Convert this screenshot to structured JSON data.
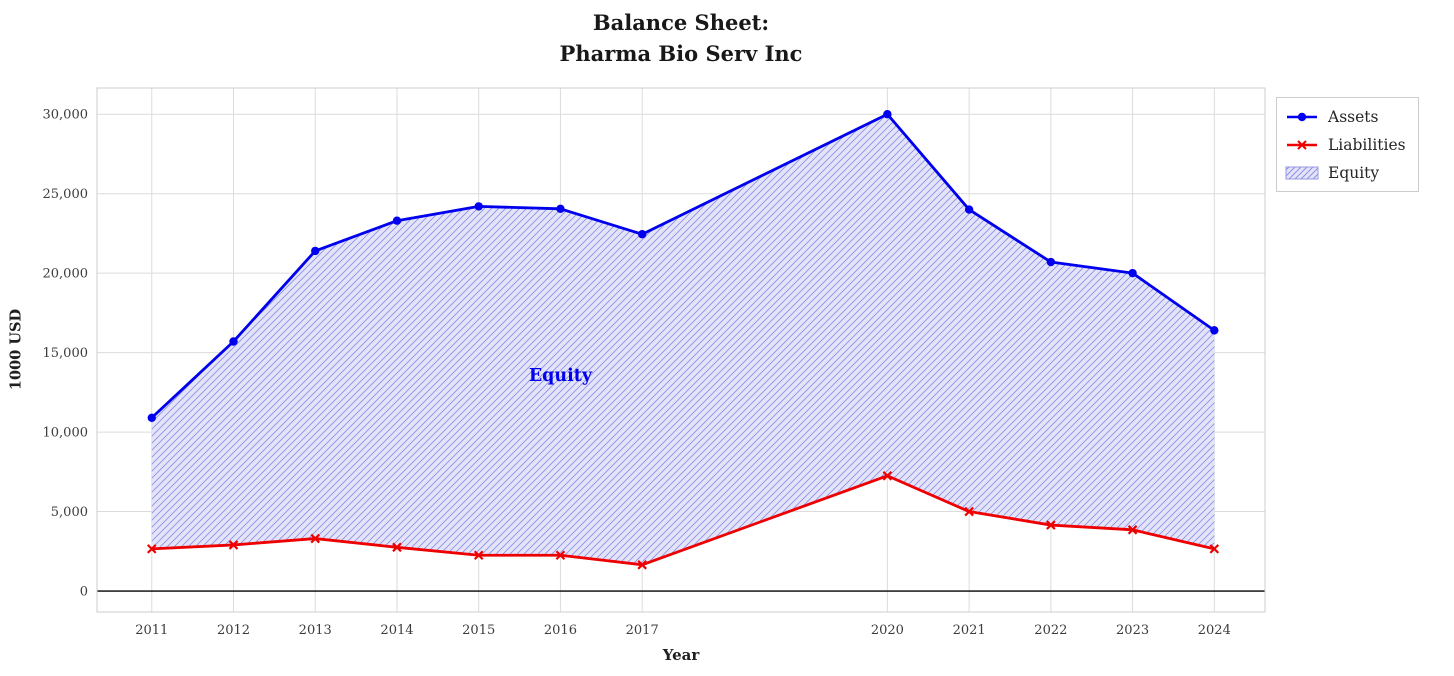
{
  "figure": {
    "title_line1": "Balance Sheet:",
    "title_line2": "Pharma Bio Serv Inc",
    "xlabel": "Year",
    "ylabel": "1000 USD"
  },
  "legend": {
    "items": [
      {
        "label": "Assets",
        "icon": "line-circle-icon",
        "color": "#0000ee"
      },
      {
        "label": "Liabilities",
        "icon": "line-x-icon",
        "color": "#ee0000"
      },
      {
        "label": "Equity",
        "icon": "hatch-patch-icon",
        "color": "#e4e4f9"
      }
    ]
  },
  "chart_data": {
    "type": "line",
    "title": "Balance Sheet:\nPharma Bio Serv Inc",
    "xlabel": "Year",
    "ylabel": "1000 USD",
    "x": [
      2011,
      2012,
      2013,
      2014,
      2015,
      2016,
      2017,
      2020,
      2021,
      2022,
      2023,
      2024
    ],
    "series": [
      {
        "name": "Assets",
        "color": "#0000ee",
        "marker": "circle",
        "values": [
          10900,
          15700,
          21400,
          23300,
          24200,
          24050,
          22450,
          30000,
          24000,
          20700,
          20000,
          16400
        ]
      },
      {
        "name": "Liabilities",
        "color": "#ee0000",
        "marker": "x",
        "values": [
          2650,
          2900,
          3300,
          2750,
          2250,
          2250,
          1650,
          7250,
          5000,
          4150,
          3850,
          2650
        ]
      }
    ],
    "fill_between": {
      "name": "Equity",
      "upper": "Assets",
      "lower": "Liabilities",
      "facecolor": "#e4e4f9",
      "hatch_color": "#8f8fe8",
      "hatch": "//"
    },
    "annotation": {
      "text": "Equity",
      "x": 2016,
      "y": 13200,
      "color": "#0000ee"
    },
    "xticks": [
      2011,
      2012,
      2013,
      2014,
      2015,
      2016,
      2017,
      2020,
      2021,
      2022,
      2023,
      2024
    ],
    "xtick_labels": [
      "2011",
      "2012",
      "2013",
      "2014",
      "2015",
      "2016",
      "2017",
      "2020",
      "2021",
      "2022",
      "2023",
      "2024"
    ],
    "yticks": [
      0,
      5000,
      10000,
      15000,
      20000,
      25000,
      30000
    ],
    "ytick_labels": [
      "0",
      "5,000",
      "10,000",
      "15,000",
      "20,000",
      "25,000",
      "30,000"
    ],
    "xlim": [
      2010.33,
      2024.62
    ],
    "ylim": [
      -1320,
      31650
    ],
    "grid": true,
    "zero_line": true,
    "legend_position": "upper right outside"
  }
}
